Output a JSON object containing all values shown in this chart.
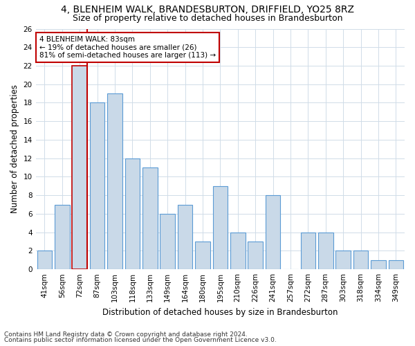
{
  "title": "4, BLENHEIM WALK, BRANDESBURTON, DRIFFIELD, YO25 8RZ",
  "subtitle": "Size of property relative to detached houses in Brandesburton",
  "xlabel": "Distribution of detached houses by size in Brandesburton",
  "ylabel": "Number of detached properties",
  "categories": [
    "41sqm",
    "56sqm",
    "72sqm",
    "87sqm",
    "103sqm",
    "118sqm",
    "133sqm",
    "149sqm",
    "164sqm",
    "180sqm",
    "195sqm",
    "210sqm",
    "226sqm",
    "241sqm",
    "257sqm",
    "272sqm",
    "287sqm",
    "303sqm",
    "318sqm",
    "334sqm",
    "349sqm"
  ],
  "values": [
    2,
    7,
    22,
    18,
    19,
    12,
    11,
    6,
    7,
    3,
    9,
    4,
    3,
    8,
    0,
    4,
    4,
    2,
    2,
    1,
    1
  ],
  "bar_color": "#c9d9e8",
  "bar_edge_color": "#5b9bd5",
  "highlight_bar_index": 2,
  "red_line_color": "#c00000",
  "grid_color": "#d0dce8",
  "background_color": "#ffffff",
  "annotation_text": "4 BLENHEIM WALK: 83sqm\n← 19% of detached houses are smaller (26)\n81% of semi-detached houses are larger (113) →",
  "annotation_box_color": "#ffffff",
  "annotation_border_color": "#c00000",
  "footer_line1": "Contains HM Land Registry data © Crown copyright and database right 2024.",
  "footer_line2": "Contains public sector information licensed under the Open Government Licence v3.0.",
  "ylim": [
    0,
    26
  ],
  "yticks": [
    0,
    2,
    4,
    6,
    8,
    10,
    12,
    14,
    16,
    18,
    20,
    22,
    24,
    26
  ],
  "title_fontsize": 10,
  "subtitle_fontsize": 9,
  "tick_fontsize": 7.5,
  "ylabel_fontsize": 8.5,
  "xlabel_fontsize": 8.5,
  "annotation_fontsize": 7.5,
  "footer_fontsize": 6.5
}
